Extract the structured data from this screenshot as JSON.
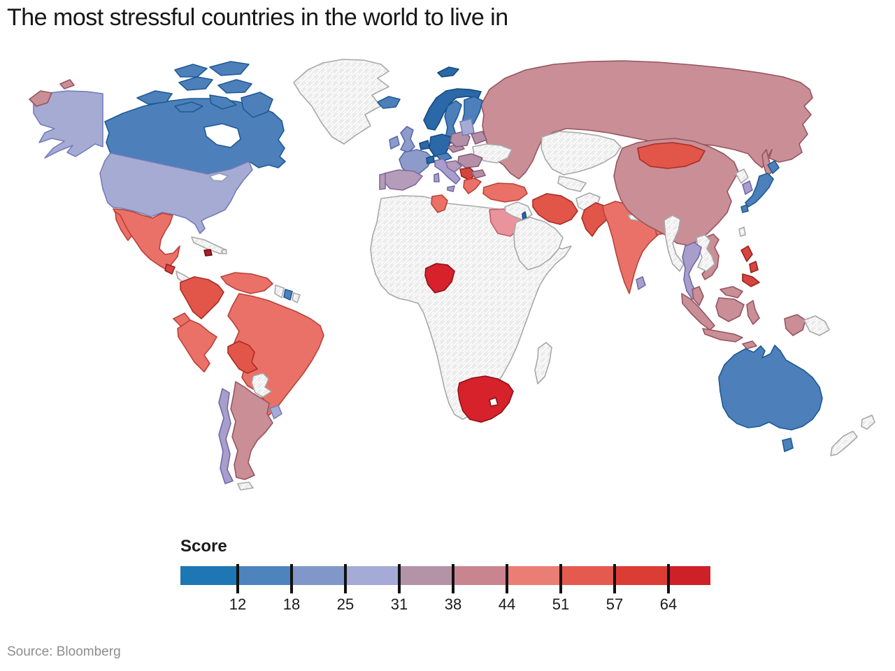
{
  "title": "The most stressful countries in the world to live in",
  "source": "Source: Bloomberg",
  "legend": {
    "label": "Score",
    "ticks": [
      "12",
      "18",
      "25",
      "31",
      "38",
      "44",
      "51",
      "57",
      "64"
    ],
    "segment_colors": [
      "#1f76b4",
      "#4e84bd",
      "#8297c9",
      "#a3abd6",
      "#b593a7",
      "#c8858f",
      "#ea7d74",
      "#e45a4f",
      "#db3d35",
      "#cd2027"
    ]
  },
  "palette": {
    "blue1": {
      "fill": "#2a68a8",
      "stroke": "#16497f"
    },
    "blue2": {
      "fill": "#4d80ba",
      "stroke": "#1d5a94"
    },
    "blue3": {
      "fill": "#8c9bc9",
      "stroke": "#5b6cab"
    },
    "blue4": {
      "fill": "#a6abd3",
      "stroke": "#757cba"
    },
    "lilac": {
      "fill": "#b49cba",
      "stroke": "#84689a"
    },
    "purple": {
      "fill": "#a89ecc",
      "stroke": "#7467a8"
    },
    "mauve": {
      "fill": "#b48fa6",
      "stroke": "#845e7b"
    },
    "rose": {
      "fill": "#c98e96",
      "stroke": "#96545f"
    },
    "pink": {
      "fill": "#e9949c",
      "stroke": "#bf5a66"
    },
    "salmon": {
      "fill": "#ea7168",
      "stroke": "#bb4138"
    },
    "red1": {
      "fill": "#e25549",
      "stroke": "#a82d24"
    },
    "red2": {
      "fill": "#d4453f",
      "stroke": "#99231e"
    },
    "red3": {
      "fill": "#d7212b",
      "stroke": "#8c1218"
    },
    "darkred": {
      "fill": "#ae1f28",
      "stroke": "#6f0d13"
    },
    "nodata": {
      "fill": "hatch",
      "stroke": "#a8a8a8"
    }
  },
  "chart_data": {
    "type": "choropleth_map",
    "title": "The most stressful countries in the world to live in",
    "legend_label": "Score",
    "legend_ticks": [
      12,
      18,
      25,
      31,
      38,
      44,
      51,
      57,
      64
    ],
    "scale_range": [
      5,
      70
    ],
    "scale_note": "blue = low stress score, red = high stress score, hatched = no data",
    "regions": [
      {
        "id": "canada",
        "name": "Canada",
        "tone": "blue2",
        "score_estimate": 15
      },
      {
        "id": "greenland",
        "name": "Greenland",
        "tone": "nodata",
        "score_estimate": null
      },
      {
        "id": "usa",
        "name": "United States",
        "tone": "blue4",
        "score_estimate": 28
      },
      {
        "id": "mexico",
        "name": "Mexico",
        "tone": "salmon",
        "score_estimate": 47
      },
      {
        "id": "guatemala",
        "name": "Guatemala",
        "tone": "red2",
        "score_estimate": 59
      },
      {
        "id": "central-america",
        "name": "Central America",
        "tone": "nodata",
        "score_estimate": null
      },
      {
        "id": "cuba",
        "name": "Cuba",
        "tone": "nodata",
        "score_estimate": null
      },
      {
        "id": "hispaniola",
        "name": "Haiti / Dominican Republic",
        "tone": "darkred",
        "score_estimate": 68
      },
      {
        "id": "puerto-rico",
        "name": "Puerto Rico",
        "tone": "nodata",
        "score_estimate": null
      },
      {
        "id": "colombia",
        "name": "Colombia",
        "tone": "red1",
        "score_estimate": 54
      },
      {
        "id": "venezuela",
        "name": "Venezuela",
        "tone": "salmon",
        "score_estimate": 47
      },
      {
        "id": "guyana",
        "name": "Guyana",
        "tone": "nodata",
        "score_estimate": null
      },
      {
        "id": "suriname",
        "name": "Suriname",
        "tone": "blue2",
        "score_estimate": 15
      },
      {
        "id": "french-guiana",
        "name": "French Guiana",
        "tone": "nodata",
        "score_estimate": null
      },
      {
        "id": "ecuador",
        "name": "Ecuador",
        "tone": "salmon",
        "score_estimate": 47
      },
      {
        "id": "peru",
        "name": "Peru",
        "tone": "salmon",
        "score_estimate": 47
      },
      {
        "id": "brazil",
        "name": "Brazil",
        "tone": "salmon",
        "score_estimate": 47
      },
      {
        "id": "bolivia",
        "name": "Bolivia",
        "tone": "red1",
        "score_estimate": 54
      },
      {
        "id": "paraguay",
        "name": "Paraguay",
        "tone": "nodata",
        "score_estimate": null
      },
      {
        "id": "uruguay",
        "name": "Uruguay",
        "tone": "blue4",
        "score_estimate": 28
      },
      {
        "id": "argentina",
        "name": "Argentina",
        "tone": "rose",
        "score_estimate": 41
      },
      {
        "id": "chile",
        "name": "Chile",
        "tone": "purple",
        "score_estimate": 34
      },
      {
        "id": "tierra-del-fuego",
        "name": "Tierra del Fuego",
        "tone": "nodata",
        "score_estimate": null
      },
      {
        "id": "iceland",
        "name": "Iceland",
        "tone": "blue2",
        "score_estimate": 15
      },
      {
        "id": "norway",
        "name": "Norway",
        "tone": "blue1",
        "score_estimate": 10
      },
      {
        "id": "sweden",
        "name": "Sweden",
        "tone": "blue2",
        "score_estimate": 15
      },
      {
        "id": "finland",
        "name": "Finland",
        "tone": "blue2",
        "score_estimate": 15
      },
      {
        "id": "denmark",
        "name": "Denmark",
        "tone": "blue1",
        "score_estimate": 10
      },
      {
        "id": "uk",
        "name": "United Kingdom",
        "tone": "blue3",
        "score_estimate": 21
      },
      {
        "id": "ireland",
        "name": "Ireland",
        "tone": "blue3",
        "score_estimate": 21
      },
      {
        "id": "benelux",
        "name": "Netherlands / Belgium",
        "tone": "blue1",
        "score_estimate": 10
      },
      {
        "id": "germany",
        "name": "Germany",
        "tone": "blue1",
        "score_estimate": 10
      },
      {
        "id": "france",
        "name": "France",
        "tone": "blue3",
        "score_estimate": 21
      },
      {
        "id": "spain",
        "name": "Spain",
        "tone": "lilac",
        "score_estimate": 34
      },
      {
        "id": "portugal",
        "name": "Portugal",
        "tone": "lilac",
        "score_estimate": 34
      },
      {
        "id": "italy",
        "name": "Italy",
        "tone": "purple",
        "score_estimate": 34
      },
      {
        "id": "switzerland",
        "name": "Switzerland",
        "tone": "blue1",
        "score_estimate": 10
      },
      {
        "id": "austria",
        "name": "Austria",
        "tone": "blue2",
        "score_estimate": 15
      },
      {
        "id": "czech-slovakia",
        "name": "Czechia / Slovakia",
        "tone": "mauve",
        "score_estimate": 39
      },
      {
        "id": "poland",
        "name": "Poland",
        "tone": "mauve",
        "score_estimate": 39
      },
      {
        "id": "baltics",
        "name": "Baltic states",
        "tone": "blue4",
        "score_estimate": 28
      },
      {
        "id": "belarus",
        "name": "Belarus",
        "tone": "mauve",
        "score_estimate": 39
      },
      {
        "id": "ukraine",
        "name": "Ukraine",
        "tone": "nodata",
        "score_estimate": null
      },
      {
        "id": "romania-hungary",
        "name": "Hungary / Romania",
        "tone": "mauve",
        "score_estimate": 39
      },
      {
        "id": "croatia-bosnia",
        "name": "Croatia / Bosnia",
        "tone": "lilac",
        "score_estimate": 34
      },
      {
        "id": "serbia-balkans",
        "name": "Serbia / Balkans",
        "tone": "red2",
        "score_estimate": 59
      },
      {
        "id": "bulgaria",
        "name": "Bulgaria",
        "tone": "mauve",
        "score_estimate": 39
      },
      {
        "id": "greece",
        "name": "Greece",
        "tone": "salmon",
        "score_estimate": 47
      },
      {
        "id": "turkey",
        "name": "Turkey",
        "tone": "salmon",
        "score_estimate": 47
      },
      {
        "id": "svalbard",
        "name": "Svalbard",
        "tone": "blue1",
        "score_estimate": 10
      },
      {
        "id": "russia",
        "name": "Russia",
        "tone": "rose",
        "score_estimate": 41
      },
      {
        "id": "kazakhstan-central-asia",
        "name": "Kazakhstan / Central Asia",
        "tone": "nodata",
        "score_estimate": null
      },
      {
        "id": "iraq-syria",
        "name": "Iraq / Syria",
        "tone": "nodata",
        "score_estimate": null
      },
      {
        "id": "israel",
        "name": "Israel",
        "tone": "blue1",
        "score_estimate": 10
      },
      {
        "id": "saudi-arabia",
        "name": "Arabian Peninsula",
        "tone": "nodata",
        "score_estimate": null
      },
      {
        "id": "iran",
        "name": "Iran",
        "tone": "red1",
        "score_estimate": 54
      },
      {
        "id": "afghanistan",
        "name": "Afghanistan",
        "tone": "nodata",
        "score_estimate": null
      },
      {
        "id": "pakistan",
        "name": "Pakistan",
        "tone": "red1",
        "score_estimate": 54
      },
      {
        "id": "india",
        "name": "India",
        "tone": "salmon",
        "score_estimate": 47
      },
      {
        "id": "nepal",
        "name": "Nepal",
        "tone": "nodata",
        "score_estimate": null
      },
      {
        "id": "bangladesh",
        "name": "Bangladesh",
        "tone": "salmon",
        "score_estimate": 47
      },
      {
        "id": "sri-lanka",
        "name": "Sri Lanka",
        "tone": "purple",
        "score_estimate": 34
      },
      {
        "id": "myanmar",
        "name": "Myanmar",
        "tone": "nodata",
        "score_estimate": null
      },
      {
        "id": "thailand",
        "name": "Thailand",
        "tone": "purple",
        "score_estimate": 34
      },
      {
        "id": "laos-cambodia",
        "name": "Laos / Cambodia",
        "tone": "nodata",
        "score_estimate": null
      },
      {
        "id": "vietnam",
        "name": "Vietnam",
        "tone": "rose",
        "score_estimate": 41
      },
      {
        "id": "china",
        "name": "China",
        "tone": "rose",
        "score_estimate": 41
      },
      {
        "id": "mongolia",
        "name": "Mongolia",
        "tone": "red1",
        "score_estimate": 54
      },
      {
        "id": "north-korea",
        "name": "North Korea",
        "tone": "nodata",
        "score_estimate": null
      },
      {
        "id": "south-korea",
        "name": "South Korea",
        "tone": "purple",
        "score_estimate": 34
      },
      {
        "id": "japan",
        "name": "Japan",
        "tone": "blue2",
        "score_estimate": 15
      },
      {
        "id": "taiwan",
        "name": "Taiwan",
        "tone": "nodata",
        "score_estimate": null
      },
      {
        "id": "philippines",
        "name": "Philippines",
        "tone": "red2",
        "score_estimate": 59
      },
      {
        "id": "malaysia",
        "name": "Malaysia",
        "tone": "rose",
        "score_estimate": 41
      },
      {
        "id": "indonesia",
        "name": "Indonesia",
        "tone": "rose",
        "score_estimate": 41
      },
      {
        "id": "png",
        "name": "Papua New Guinea",
        "tone": "nodata",
        "score_estimate": null
      },
      {
        "id": "australia",
        "name": "Australia",
        "tone": "blue2",
        "score_estimate": 15
      },
      {
        "id": "new-zealand",
        "name": "New Zealand",
        "tone": "nodata",
        "score_estimate": null
      },
      {
        "id": "africa",
        "name": "Africa (most countries)",
        "tone": "nodata",
        "score_estimate": null
      },
      {
        "id": "madagascar",
        "name": "Madagascar",
        "tone": "nodata",
        "score_estimate": null
      },
      {
        "id": "egypt",
        "name": "Egypt",
        "tone": "pink",
        "score_estimate": 45
      },
      {
        "id": "tunisia",
        "name": "Tunisia",
        "tone": "salmon",
        "score_estimate": 47
      },
      {
        "id": "nigeria",
        "name": "Nigeria",
        "tone": "red3",
        "score_estimate": 66
      },
      {
        "id": "south-africa",
        "name": "South Africa",
        "tone": "red3",
        "score_estimate": 66
      }
    ]
  }
}
